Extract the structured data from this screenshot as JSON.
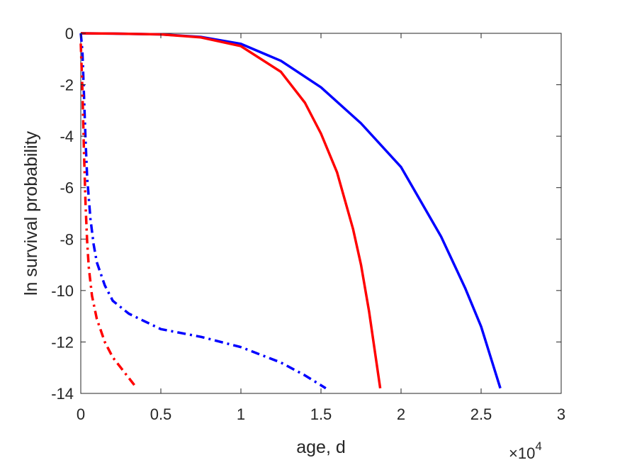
{
  "chart_data": {
    "type": "line",
    "title": "",
    "xlabel": "age, d",
    "ylabel": "ln survival probability",
    "x_multiplier": "×10",
    "x_multiplier_exponent": "4",
    "xlim": [
      0,
      30000
    ],
    "ylim": [
      -14,
      0
    ],
    "x_ticks": [
      0,
      5000,
      10000,
      15000,
      20000,
      25000,
      30000
    ],
    "x_tick_labels": [
      "0",
      "0.5",
      "1",
      "1.5",
      "2",
      "2.5",
      "3"
    ],
    "y_ticks": [
      0,
      -2,
      -4,
      -6,
      -8,
      -10,
      -12,
      -14
    ],
    "y_tick_labels": [
      "0",
      "-2",
      "-4",
      "-6",
      "-8",
      "-10",
      "-12",
      "-14"
    ],
    "grid": false,
    "series": [
      {
        "color": "#0000ff",
        "style": "solid",
        "x": [
          0,
          2000,
          5000,
          7500,
          10000,
          12500,
          15000,
          17500,
          20000,
          22500,
          24000,
          25000,
          26200
        ],
        "y": [
          0,
          -0.01,
          -0.04,
          -0.14,
          -0.41,
          -1.07,
          -2.1,
          -3.5,
          -5.2,
          -7.9,
          -9.9,
          -11.4,
          -13.8
        ]
      },
      {
        "color": "#ff0000",
        "style": "solid",
        "x": [
          0,
          2000,
          5000,
          7500,
          10000,
          12500,
          14000,
          15000,
          16000,
          17000,
          17500,
          18000,
          18700
        ],
        "y": [
          0,
          -0.01,
          -0.04,
          -0.16,
          -0.5,
          -1.5,
          -2.7,
          -3.9,
          -5.4,
          -7.6,
          -9.0,
          -10.8,
          -13.8
        ]
      },
      {
        "color": "#0000ff",
        "style": "dashdot",
        "x": [
          0,
          100,
          200,
          300,
          400,
          600,
          800,
          1000,
          1500,
          2000,
          3000,
          4000,
          5000,
          7500,
          10000,
          12500,
          14000,
          15300
        ],
        "y": [
          0,
          -0.7,
          -2.4,
          -4.2,
          -5.6,
          -7.2,
          -8.2,
          -8.9,
          -9.8,
          -10.4,
          -10.9,
          -11.2,
          -11.5,
          -11.8,
          -12.2,
          -12.8,
          -13.3,
          -13.8
        ]
      },
      {
        "color": "#ff0000",
        "style": "dashdot",
        "x": [
          0,
          100,
          200,
          300,
          400,
          500,
          700,
          1000,
          1500,
          2000,
          2500,
          3000,
          3500
        ],
        "y": [
          -0.4,
          -2.2,
          -4.6,
          -6.7,
          -8.1,
          -9.1,
          -10.2,
          -11.1,
          -12.0,
          -12.6,
          -13.0,
          -13.4,
          -13.8
        ]
      }
    ]
  }
}
